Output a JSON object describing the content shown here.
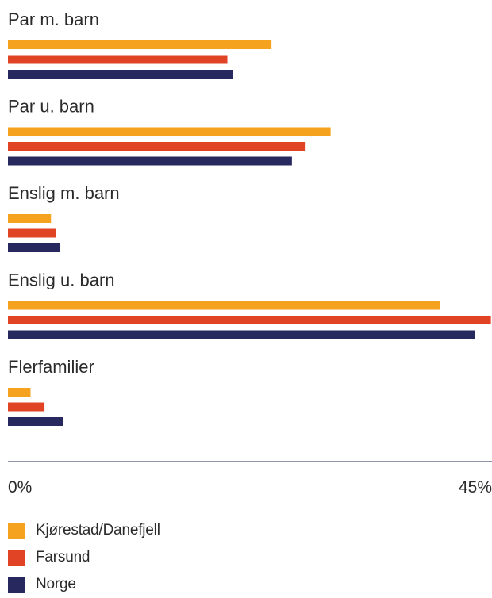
{
  "chart_data": {
    "type": "bar",
    "orientation": "horizontal",
    "categories": [
      "Par m. barn",
      "Par u. barn",
      "Enslig m. barn",
      "Enslig u. barn",
      "Flerfamilier"
    ],
    "series": [
      {
        "name": "Kjørestad/Danefjell",
        "color": "#f5a21f",
        "values": [
          24.5,
          30.0,
          4.0,
          40.2,
          2.1
        ]
      },
      {
        "name": "Farsund",
        "color": "#e04424",
        "values": [
          20.4,
          27.6,
          4.5,
          44.9,
          3.4
        ]
      },
      {
        "name": "Norge",
        "color": "#26285e",
        "values": [
          20.9,
          26.4,
          4.8,
          43.4,
          5.1
        ]
      }
    ],
    "xlim": [
      0,
      45
    ],
    "x_tick_labels": [
      "0%",
      "45%"
    ],
    "legend_position": "bottom-left",
    "axis_color": "#26285e",
    "grid": false
  }
}
